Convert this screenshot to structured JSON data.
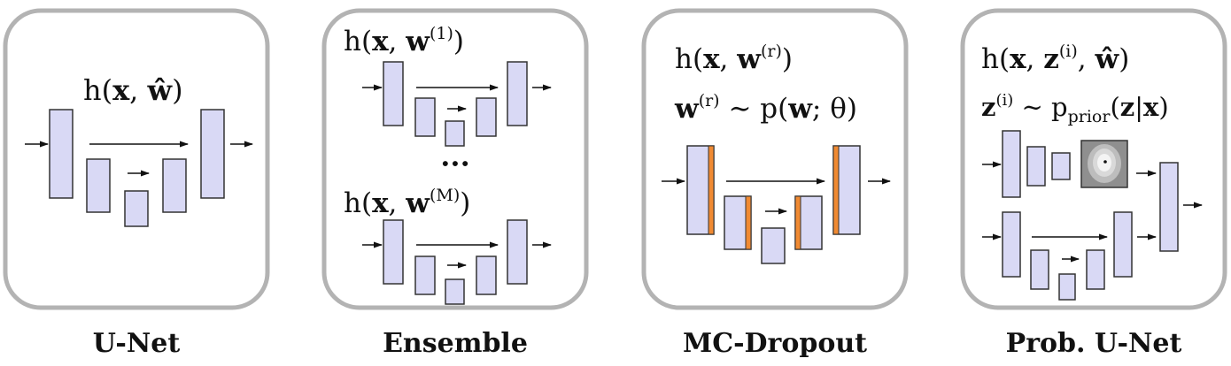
{
  "panels": [
    {
      "caption": "U-Net",
      "formula": {
        "pre": "h(",
        "x": "x",
        "sep": ", ",
        "w": "ŵ",
        "post": ")"
      }
    },
    {
      "caption": "Ensemble",
      "formula_top": {
        "pre": "h(",
        "x": "x",
        "sep": ", ",
        "w": "w",
        "sup": "(1)",
        "post": ")"
      },
      "ellipsis": "···",
      "formula_bottom": {
        "pre": "h(",
        "x": "x",
        "sep": ", ",
        "w": "w",
        "sup": "(M)",
        "post": ")"
      }
    },
    {
      "caption": "MC-Dropout",
      "formula_1": {
        "pre": "h(",
        "x": "x",
        "sep": ", ",
        "w": "w",
        "sup": "(r)",
        "post": ")"
      },
      "formula_2": {
        "w": "w",
        "sup": "(r)",
        "rel": " ∼ p(",
        "w2": "w",
        "tail": "; θ)"
      }
    },
    {
      "caption": "Prob. U-Net",
      "formula_1": {
        "pre": "h(",
        "x": "x",
        "sep": ", ",
        "z": "z",
        "sup": "(i)",
        "sep2": ", ",
        "w": "ŵ",
        "post": ")"
      },
      "formula_2": {
        "z": "z",
        "sup": "(i)",
        "rel": " ∼ p",
        "sub": "prior",
        "open": "(",
        "z2": "z",
        "bar": "|",
        "x": "x",
        "close": ")"
      }
    }
  ],
  "colors": {
    "block_fill": "#d9d9f5",
    "block_stroke": "#333333",
    "panel_border": "#b3b3b3",
    "dropout": "#f08a32",
    "latent_bg": "#8f8f8f"
  }
}
